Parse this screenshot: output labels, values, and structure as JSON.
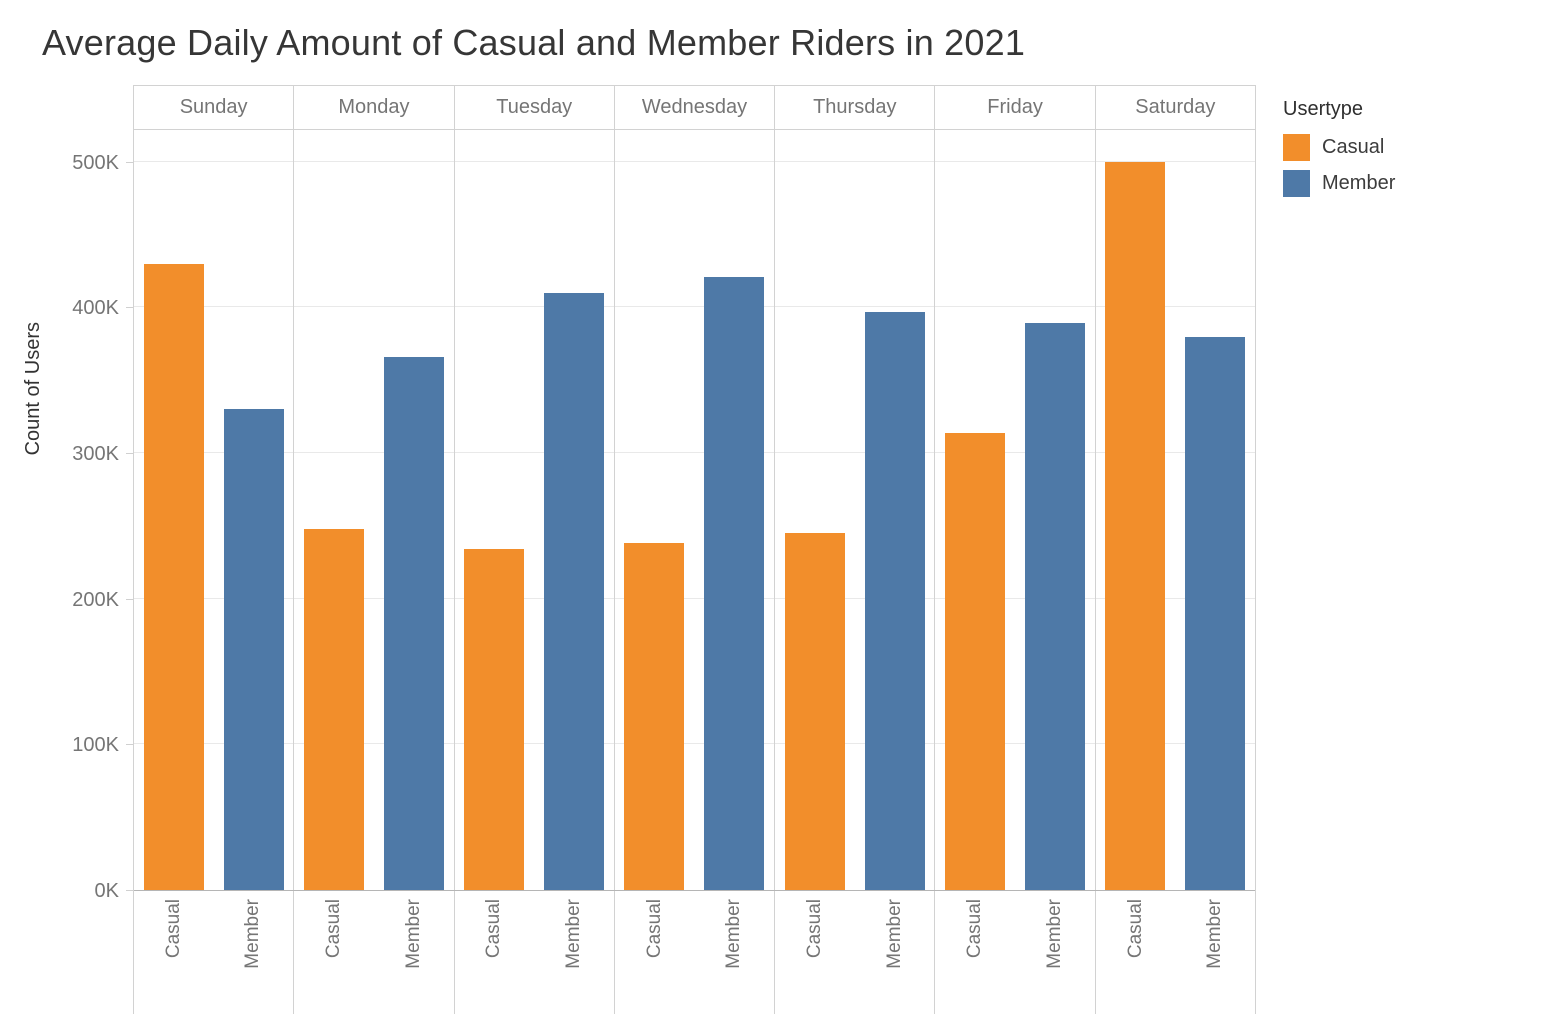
{
  "chart_data": {
    "type": "bar",
    "title": "Average Daily Amount of Casual and Member Riders in 2021",
    "xlabel": "",
    "ylabel": "Count of Users",
    "categories": [
      "Sunday",
      "Monday",
      "Tuesday",
      "Wednesday",
      "Thursday",
      "Friday",
      "Saturday"
    ],
    "series": [
      {
        "name": "Casual",
        "color": "#F28E2B",
        "values": [
          430000,
          248000,
          234000,
          238000,
          245000,
          314000,
          500000
        ]
      },
      {
        "name": "Member",
        "color": "#4E79A7",
        "values": [
          330000,
          366000,
          410000,
          421000,
          397000,
          389000,
          380000
        ]
      }
    ],
    "bar_sublabels": [
      "Casual",
      "Member"
    ],
    "y_ticks": [
      "0K",
      "100K",
      "200K",
      "300K",
      "400K",
      "500K"
    ],
    "y_tick_values": [
      0,
      100000,
      200000,
      300000,
      400000,
      500000
    ],
    "ylim": [
      0,
      522500
    ],
    "grid": "horizontal",
    "legend_position": "right"
  },
  "legend": {
    "title": "Usertype",
    "items": [
      {
        "label": "Casual",
        "color": "#F28E2B"
      },
      {
        "label": "Member",
        "color": "#4E79A7"
      }
    ]
  },
  "colors": {
    "casual": "#F28E2B",
    "member": "#4E79A7",
    "axis_text": "#757575",
    "title_text": "#363636",
    "gridline": "#e9e9e9",
    "panel_divider": "#d2d2d2",
    "baseline": "#b5b5b5"
  }
}
